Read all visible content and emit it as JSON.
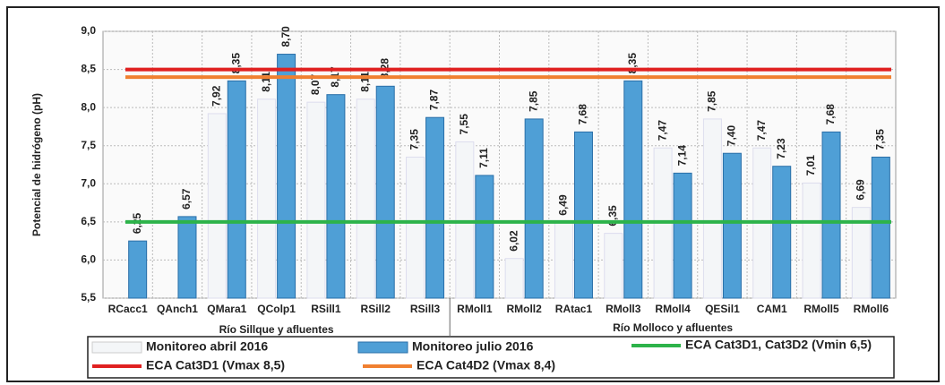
{
  "chart_data": {
    "type": "bar",
    "y_label": "Potencial de hidrógeno (pH)",
    "categories": [
      "RCacc1",
      "QAnch1",
      "QMara1",
      "QColp1",
      "RSill1",
      "RSill2",
      "RSill3",
      "RMoll1",
      "RMoll2",
      "RAtac1",
      "RMoll3",
      "RMoll4",
      "QESil1",
      "CAM1",
      "RMoll5",
      "RMoll6"
    ],
    "group_labels": [
      "Río Sillque y afluentes",
      "Río Molloco y afluentes"
    ],
    "series": [
      {
        "name": "Monitoreo abril 2016",
        "color": "#f4f6f8",
        "values": [
          null,
          null,
          7.92,
          8.11,
          8.07,
          8.11,
          7.35,
          7.55,
          6.02,
          6.49,
          6.35,
          7.47,
          7.85,
          7.47,
          7.01,
          6.69
        ],
        "value_labels": [
          null,
          null,
          "7,92",
          "8,11",
          "8,07",
          "8,11",
          "7,35",
          "7,55",
          "6,02",
          "6,49",
          "6,35",
          "7,47",
          "7,85",
          "7,47",
          "7,01",
          "6,69"
        ]
      },
      {
        "name": "Monitoreo julio 2016",
        "color": "#4f9fd6",
        "values": [
          6.25,
          6.57,
          8.35,
          8.7,
          8.17,
          8.28,
          7.87,
          7.11,
          7.85,
          7.68,
          8.35,
          7.14,
          7.4,
          7.23,
          7.68,
          7.35
        ],
        "value_labels": [
          "6,25",
          "6,57",
          "8,35",
          "8,70",
          "8,17",
          "8,28",
          "7,87",
          "7,11",
          "7,85",
          "7,68",
          "8,35",
          "7,14",
          "7,40",
          "7,23",
          "7,68",
          "7,35"
        ]
      }
    ],
    "reference_lines": [
      {
        "name": "ECA Cat3D1, Cat3D2 (Vmin 6,5)",
        "value": 6.5,
        "color": "#2db34a"
      },
      {
        "name": "ECA Cat3D1 (Vmax  8,5)",
        "value": 8.5,
        "color": "#e02020"
      },
      {
        "name": "ECA Cat4D2 (Vmax  8,4)",
        "value": 8.4,
        "color": "#f08030"
      }
    ],
    "ylim": [
      5.5,
      9.0
    ],
    "yticks": [
      {
        "value": 5.5,
        "label": "5,5"
      },
      {
        "value": 6.0,
        "label": "6,0"
      },
      {
        "value": 6.5,
        "label": "6,5"
      },
      {
        "value": 7.0,
        "label": "7,0"
      },
      {
        "value": 7.5,
        "label": "7,5"
      },
      {
        "value": 8.0,
        "label": "8,0"
      },
      {
        "value": 8.5,
        "label": "8,5"
      },
      {
        "value": 9.0,
        "label": "9,0"
      }
    ],
    "grid": true
  }
}
